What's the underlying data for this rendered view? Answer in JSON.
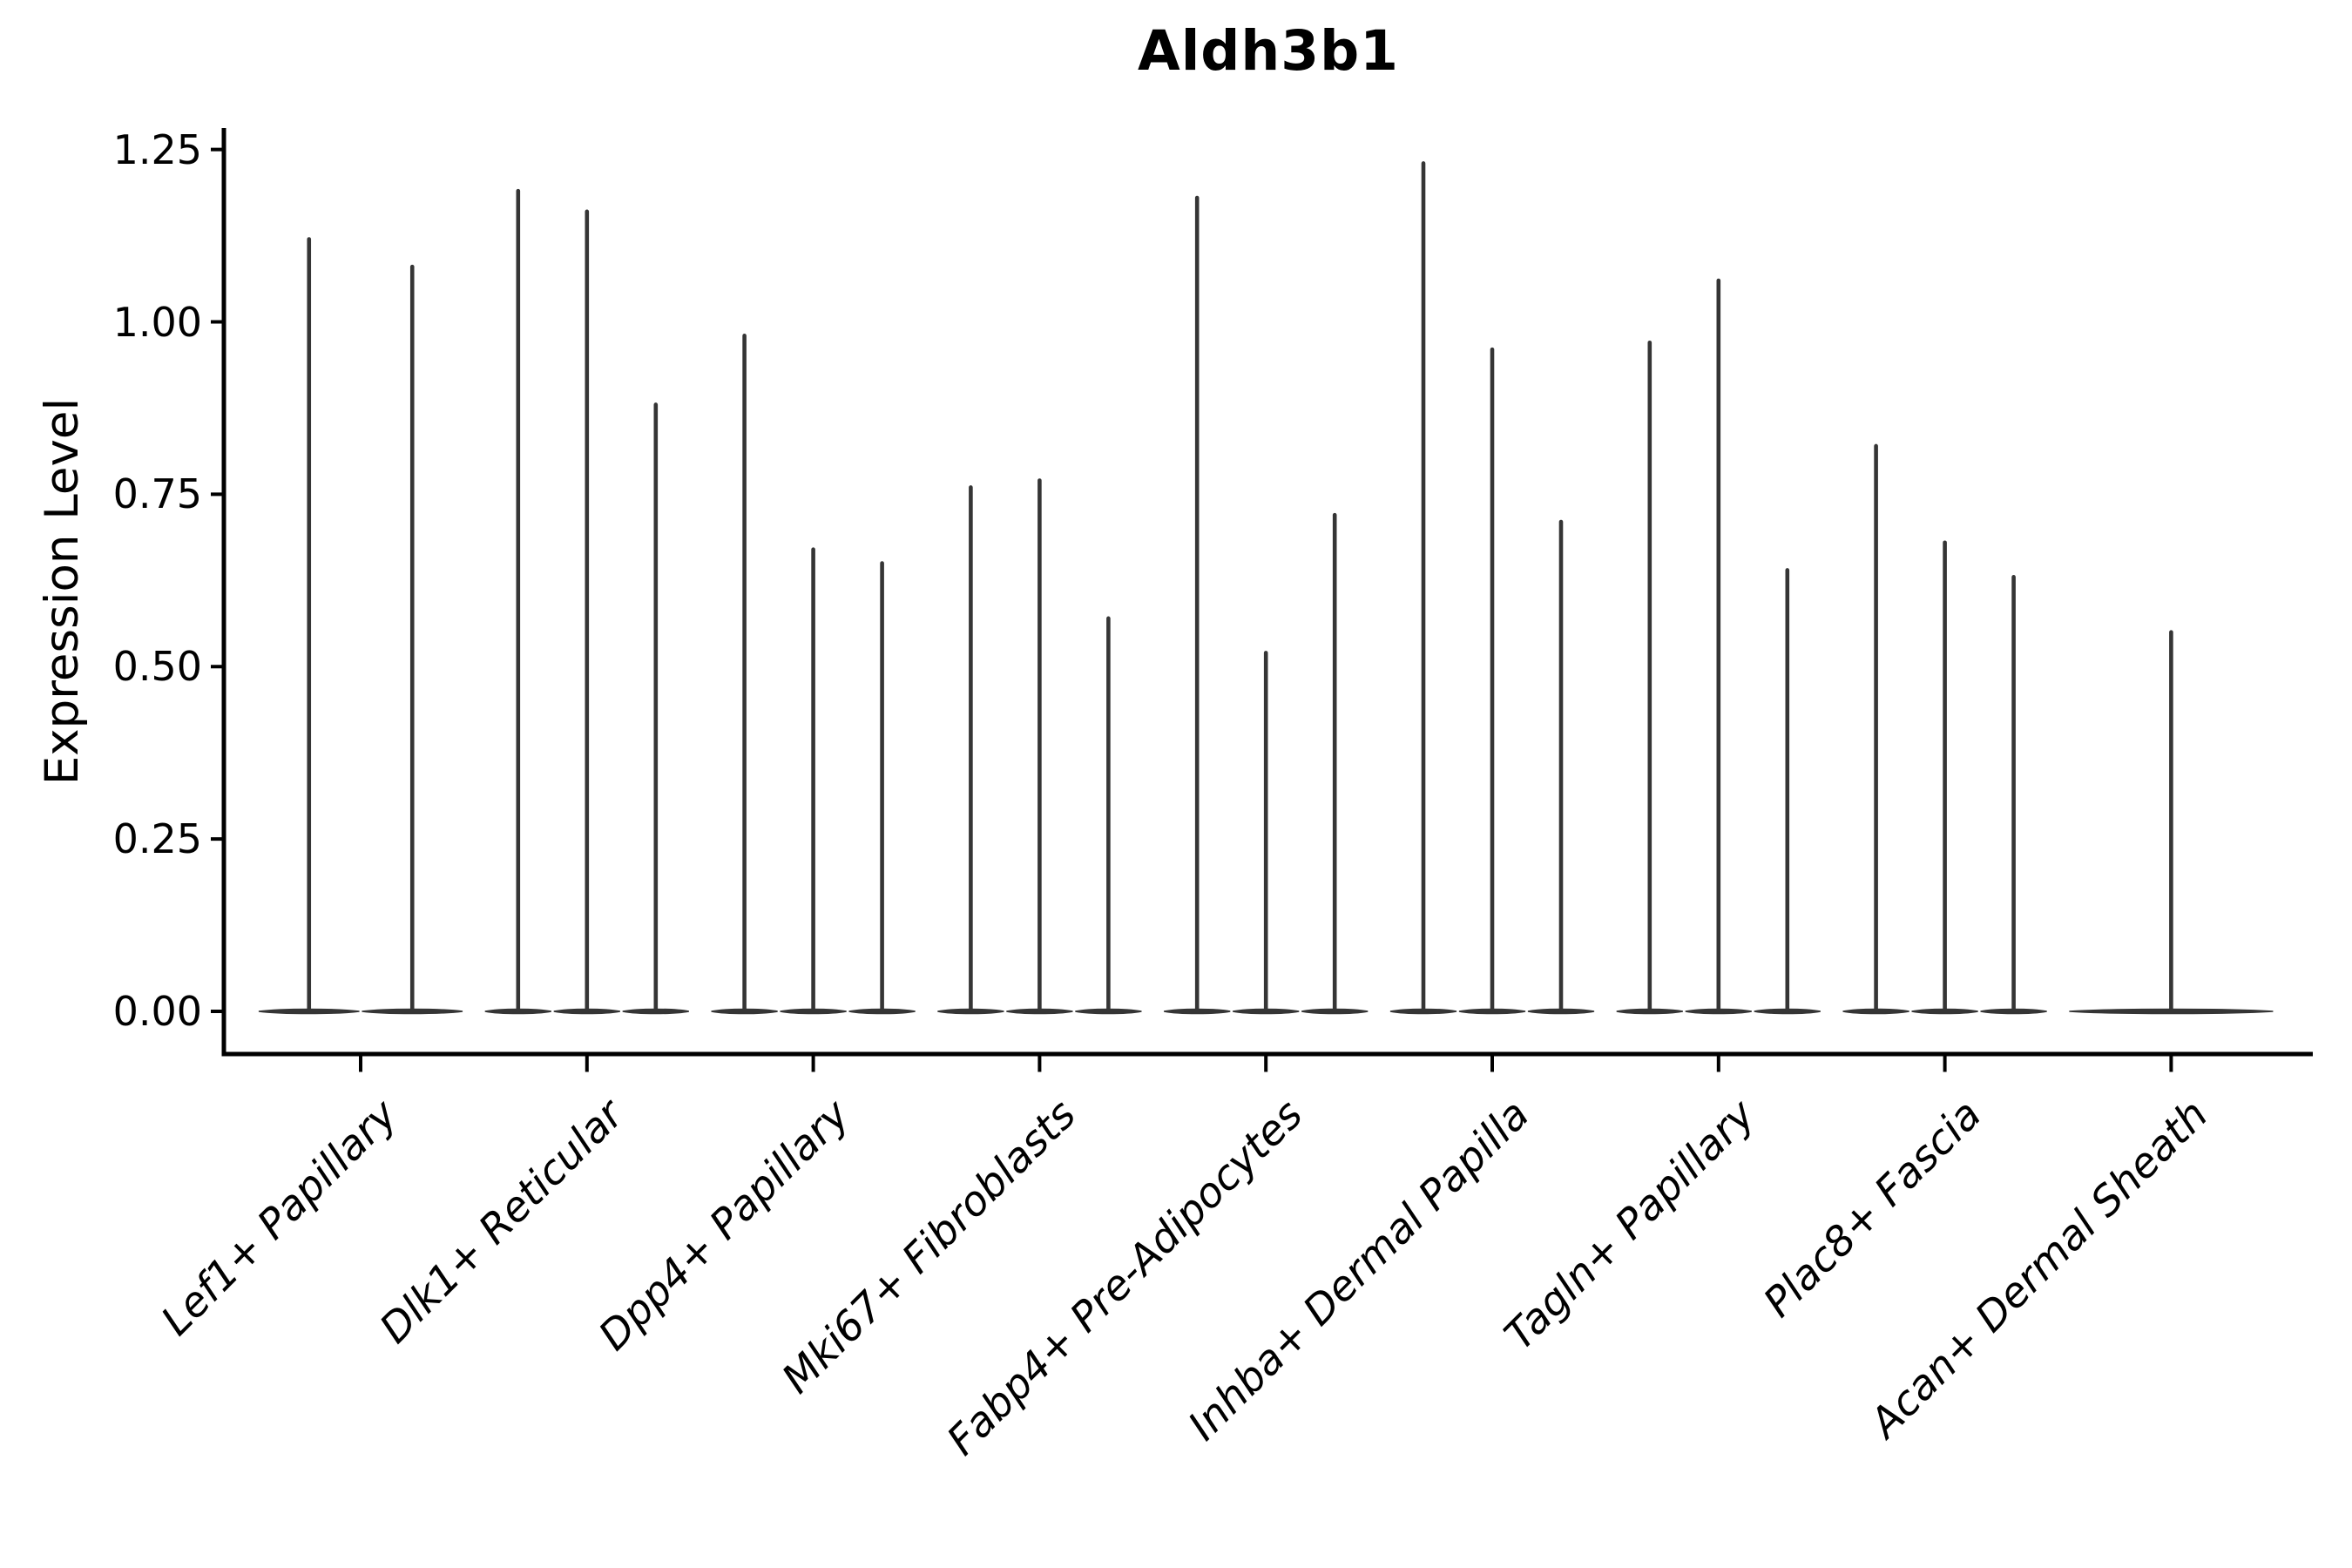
{
  "chart_data": {
    "type": "violin",
    "title": "Aldh3b1",
    "ylabel": "Expression Level",
    "xlabel": "",
    "grid": false,
    "legend": "none",
    "ylim": [
      0,
      1.25
    ],
    "ytick_labels": [
      "0.00",
      "0.25",
      "0.50",
      "0.75",
      "1.00",
      "1.25"
    ],
    "ytick_values": [
      0,
      0.25,
      0.5,
      0.75,
      1.0,
      1.25
    ],
    "categories": [
      "Lef1+ Papillary",
      "Dlk1+ Reticular",
      "Dpp4+ Papillary",
      "Mki67+ Fibroblasts",
      "Fabp4+ Pre-Adipocytes",
      "Inhba+ Dermal Papilla",
      "Tagln+ Papillary",
      "Plac8+ Fascia",
      "Acan+ Dermal Sheath"
    ],
    "series": [
      {
        "category": "Lef1+ Papillary",
        "violin_max_values": [
          1.12,
          1.08
        ]
      },
      {
        "category": "Dlk1+ Reticular",
        "violin_max_values": [
          1.19,
          1.16,
          0.88
        ]
      },
      {
        "category": "Dpp4+ Papillary",
        "violin_max_values": [
          0.98,
          0.67,
          0.65
        ]
      },
      {
        "category": "Mki67+ Fibroblasts",
        "violin_max_values": [
          0.76,
          0.77,
          0.57
        ]
      },
      {
        "category": "Fabp4+ Pre-Adipocytes",
        "violin_max_values": [
          1.18,
          0.52,
          0.72
        ]
      },
      {
        "category": "Inhba+ Dermal Papilla",
        "violin_max_values": [
          1.23,
          0.96,
          0.71
        ]
      },
      {
        "category": "Tagln+ Papillary",
        "violin_max_values": [
          0.97,
          1.06,
          0.64
        ]
      },
      {
        "category": "Plac8+ Fascia",
        "violin_max_values": [
          0.82,
          0.68,
          0.63
        ]
      },
      {
        "category": "Acan+ Dermal Sheath",
        "violin_max_values": [
          0.55
        ]
      }
    ],
    "violin_shape_note": "each violin is a thin vertical spike from 0 up to its max value with a wide flat base at 0",
    "colors": {
      "violin": "#353535",
      "axis": "#000000",
      "text": "#000000",
      "background": "#ffffff"
    }
  }
}
